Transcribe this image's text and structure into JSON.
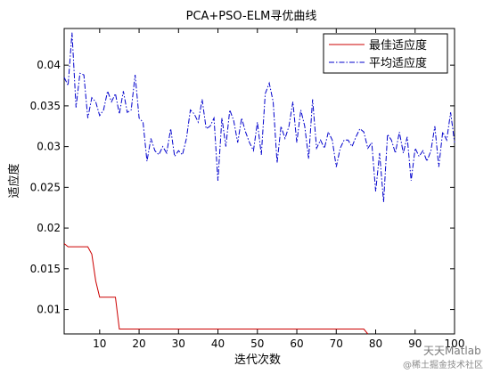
{
  "chart_data": {
    "type": "line",
    "title": "PCA+PSO-ELM寻优曲线",
    "xlabel": "迭代次数",
    "ylabel": "适应度",
    "xlim": [
      1,
      100
    ],
    "ylim": [
      0.007,
      0.0445
    ],
    "xticks": [
      10,
      20,
      30,
      40,
      50,
      60,
      70,
      80,
      90,
      100
    ],
    "yticks": [
      0.01,
      0.015,
      0.02,
      0.025,
      0.03,
      0.035,
      0.04
    ],
    "ytick_labels": [
      "0.01",
      "0.015",
      "0.02",
      "0.025",
      "0.03",
      "0.035",
      "0.04"
    ],
    "grid": false,
    "legend_position": "top-right",
    "series": [
      {
        "name": "最佳适应度",
        "color": "#cc0000",
        "style": "solid",
        "x": [
          1,
          2,
          7,
          8,
          9,
          10,
          11,
          14,
          15,
          77,
          78
        ],
        "y": [
          0.0181,
          0.0177,
          0.0177,
          0.0168,
          0.0135,
          0.0115,
          0.0115,
          0.0115,
          0.0076,
          0.0076,
          0.007
        ]
      },
      {
        "name": "平均适应度",
        "color": "#0000cc",
        "style": "dashdot",
        "x": [
          1,
          2,
          3,
          4,
          5,
          6,
          7,
          8,
          9,
          10,
          11,
          12,
          13,
          14,
          15,
          16,
          17,
          18,
          19,
          20,
          21,
          22,
          23,
          24,
          25,
          26,
          27,
          28,
          29,
          30,
          31,
          32,
          33,
          34,
          35,
          36,
          37,
          38,
          39,
          40,
          41,
          42,
          43,
          44,
          45,
          46,
          47,
          48,
          49,
          50,
          51,
          52,
          53,
          54,
          55,
          56,
          57,
          58,
          59,
          60,
          61,
          62,
          63,
          64,
          65,
          66,
          67,
          68,
          69,
          70,
          71,
          72,
          73,
          74,
          75,
          76,
          77,
          78,
          79,
          80,
          81,
          82,
          83,
          84,
          85,
          86,
          87,
          88,
          89,
          90,
          91,
          92,
          93,
          94,
          95,
          96,
          97,
          98,
          99,
          100
        ],
        "y": [
          0.0385,
          0.0375,
          0.044,
          0.0348,
          0.039,
          0.0388,
          0.0335,
          0.036,
          0.0355,
          0.0338,
          0.0345,
          0.0368,
          0.0355,
          0.0365,
          0.034,
          0.0368,
          0.0342,
          0.0345,
          0.0388,
          0.0335,
          0.033,
          0.0282,
          0.031,
          0.0295,
          0.029,
          0.03,
          0.0292,
          0.0322,
          0.0288,
          0.0295,
          0.029,
          0.031,
          0.0345,
          0.034,
          0.033,
          0.0358,
          0.0322,
          0.0325,
          0.0335,
          0.0258,
          0.0335,
          0.03,
          0.0345,
          0.0332,
          0.0305,
          0.0335,
          0.0318,
          0.0305,
          0.0295,
          0.033,
          0.029,
          0.0365,
          0.0378,
          0.0355,
          0.028,
          0.0325,
          0.031,
          0.0325,
          0.0355,
          0.0305,
          0.0345,
          0.0325,
          0.0285,
          0.0358,
          0.0298,
          0.0308,
          0.0298,
          0.0318,
          0.0308,
          0.0275,
          0.0298,
          0.0308,
          0.0308,
          0.03,
          0.0312,
          0.0322,
          0.0318,
          0.0298,
          0.0305,
          0.0245,
          0.0292,
          0.0232,
          0.0315,
          0.0308,
          0.0292,
          0.0318,
          0.0292,
          0.0312,
          0.0258,
          0.0298,
          0.0288,
          0.0295,
          0.0282,
          0.0295,
          0.0325,
          0.0275,
          0.0318,
          0.0308,
          0.0342,
          0.0305
        ]
      }
    ]
  },
  "watermark": {
    "line1": "天天Matlab",
    "line2": "@稀土掘金技术社区"
  }
}
